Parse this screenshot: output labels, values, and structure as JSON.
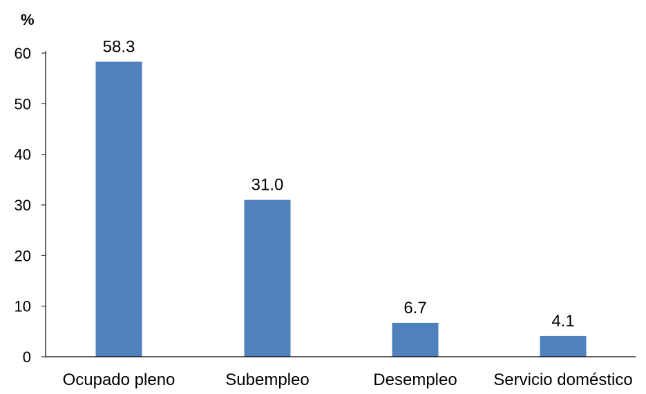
{
  "chart_data": {
    "type": "bar",
    "title": "",
    "xlabel": "",
    "ylabel": "%",
    "ylim": [
      0,
      60
    ],
    "yticks": [
      0,
      10,
      20,
      30,
      40,
      50,
      60
    ],
    "grid": false,
    "legend": "none",
    "categories": [
      "Ocupado pleno",
      "Subempleo",
      "Desempleo",
      "Servicio doméstico"
    ],
    "values": [
      58.3,
      31.0,
      6.7,
      4.1
    ],
    "value_labels": [
      "58.3",
      "31.0",
      "6.7",
      "4.1"
    ],
    "colors": {
      "bar": "#4F81BD",
      "axis": "#000000"
    }
  }
}
